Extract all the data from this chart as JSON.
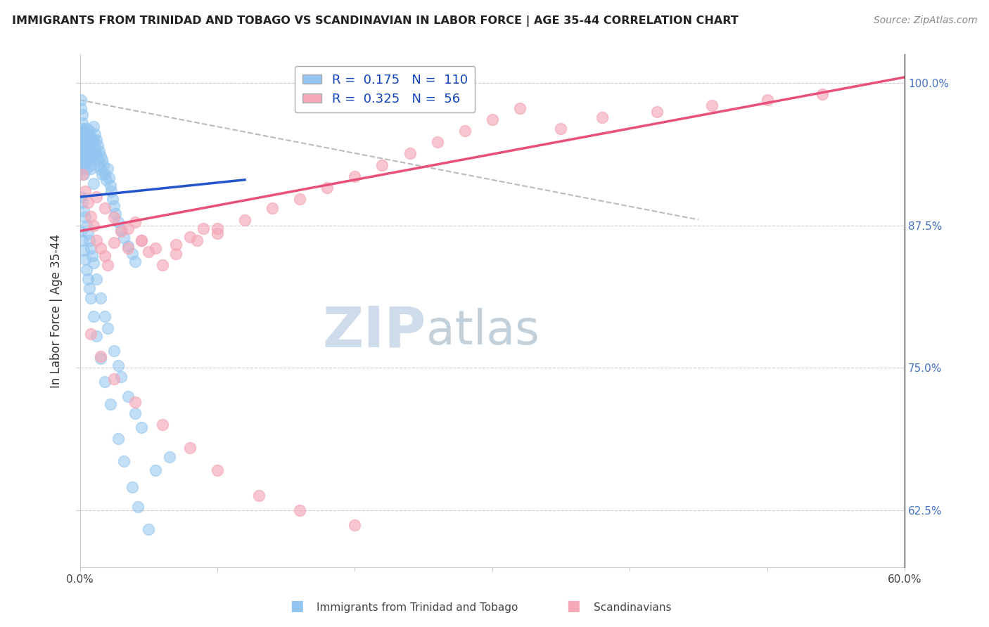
{
  "title": "IMMIGRANTS FROM TRINIDAD AND TOBAGO VS SCANDINAVIAN IN LABOR FORCE | AGE 35-44 CORRELATION CHART",
  "source": "Source: ZipAtlas.com",
  "ylabel": "In Labor Force | Age 35-44",
  "xlim": [
    0.0,
    0.6
  ],
  "ylim": [
    0.575,
    1.025
  ],
  "xticks": [
    0.0,
    0.1,
    0.2,
    0.3,
    0.4,
    0.5,
    0.6
  ],
  "xticklabels": [
    "0.0%",
    "",
    "",
    "",
    "",
    "",
    "60.0%"
  ],
  "ytick_positions": [
    0.625,
    0.75,
    0.875,
    1.0
  ],
  "ytick_labels": [
    "62.5%",
    "75.0%",
    "87.5%",
    "100.0%"
  ],
  "legend_blue_r": "0.175",
  "legend_blue_n": "110",
  "legend_pink_r": "0.325",
  "legend_pink_n": "56",
  "blue_color": "#92C5F0",
  "pink_color": "#F4A8B8",
  "blue_line_color": "#2255CC",
  "pink_line_color": "#E8507A",
  "dash_color": "#BBBBBB",
  "watermark_zip": "ZIP",
  "watermark_atlas": "atlas",
  "watermark_color_zip": "#C5D8EC",
  "watermark_color_atlas": "#B8C8D8",
  "grid_color": "#CCCCCC",
  "blue_line_x0": 0.0,
  "blue_line_x1": 0.12,
  "blue_line_y0": 0.9,
  "blue_line_y1": 0.915,
  "pink_line_x0": 0.0,
  "pink_line_x1": 0.6,
  "pink_line_y0": 0.87,
  "pink_line_y1": 1.005,
  "dash_line_x0": 0.0,
  "dash_line_x1": 0.45,
  "dash_line_y0": 0.985,
  "dash_line_y1": 0.88,
  "blue_scatter_x": [
    0.001,
    0.001,
    0.001,
    0.002,
    0.002,
    0.002,
    0.002,
    0.003,
    0.003,
    0.003,
    0.003,
    0.004,
    0.004,
    0.004,
    0.005,
    0.005,
    0.005,
    0.005,
    0.006,
    0.006,
    0.006,
    0.007,
    0.007,
    0.007,
    0.008,
    0.008,
    0.008,
    0.009,
    0.009,
    0.01,
    0.01,
    0.01,
    0.011,
    0.011,
    0.012,
    0.012,
    0.013,
    0.013,
    0.014,
    0.014,
    0.015,
    0.015,
    0.016,
    0.016,
    0.017,
    0.018,
    0.019,
    0.02,
    0.021,
    0.022,
    0.023,
    0.024,
    0.025,
    0.026,
    0.028,
    0.03,
    0.032,
    0.035,
    0.038,
    0.04,
    0.001,
    0.002,
    0.003,
    0.004,
    0.005,
    0.006,
    0.007,
    0.008,
    0.009,
    0.01,
    0.012,
    0.015,
    0.018,
    0.02,
    0.025,
    0.028,
    0.03,
    0.035,
    0.04,
    0.045,
    0.001,
    0.002,
    0.003,
    0.004,
    0.005,
    0.006,
    0.007,
    0.008,
    0.01,
    0.012,
    0.015,
    0.018,
    0.022,
    0.028,
    0.032,
    0.038,
    0.042,
    0.05,
    0.055,
    0.065,
    0.001,
    0.001,
    0.002,
    0.002,
    0.003,
    0.004,
    0.005,
    0.006,
    0.008,
    0.01
  ],
  "blue_scatter_y": [
    0.945,
    0.935,
    0.925,
    0.96,
    0.95,
    0.94,
    0.93,
    0.955,
    0.945,
    0.935,
    0.92,
    0.95,
    0.94,
    0.93,
    0.96,
    0.95,
    0.938,
    0.925,
    0.955,
    0.943,
    0.932,
    0.958,
    0.946,
    0.933,
    0.952,
    0.94,
    0.928,
    0.948,
    0.936,
    0.962,
    0.95,
    0.938,
    0.955,
    0.943,
    0.95,
    0.937,
    0.945,
    0.933,
    0.94,
    0.928,
    0.936,
    0.924,
    0.933,
    0.92,
    0.928,
    0.92,
    0.915,
    0.925,
    0.917,
    0.91,
    0.905,
    0.898,
    0.892,
    0.885,
    0.878,
    0.871,
    0.864,
    0.857,
    0.85,
    0.843,
    0.9,
    0.895,
    0.888,
    0.882,
    0.875,
    0.868,
    0.862,
    0.855,
    0.848,
    0.842,
    0.828,
    0.811,
    0.795,
    0.785,
    0.765,
    0.752,
    0.742,
    0.725,
    0.71,
    0.698,
    0.87,
    0.862,
    0.853,
    0.845,
    0.836,
    0.828,
    0.82,
    0.811,
    0.795,
    0.778,
    0.758,
    0.738,
    0.718,
    0.688,
    0.668,
    0.645,
    0.628,
    0.608,
    0.66,
    0.672,
    0.985,
    0.978,
    0.972,
    0.965,
    0.958,
    0.952,
    0.945,
    0.938,
    0.925,
    0.912
  ],
  "pink_scatter_x": [
    0.002,
    0.004,
    0.006,
    0.008,
    0.01,
    0.012,
    0.015,
    0.018,
    0.02,
    0.025,
    0.03,
    0.035,
    0.04,
    0.045,
    0.05,
    0.06,
    0.07,
    0.08,
    0.09,
    0.1,
    0.012,
    0.018,
    0.025,
    0.035,
    0.045,
    0.055,
    0.07,
    0.085,
    0.1,
    0.12,
    0.14,
    0.16,
    0.18,
    0.2,
    0.22,
    0.24,
    0.26,
    0.28,
    0.3,
    0.32,
    0.35,
    0.38,
    0.42,
    0.46,
    0.5,
    0.54,
    0.008,
    0.015,
    0.025,
    0.04,
    0.06,
    0.08,
    0.1,
    0.13,
    0.16,
    0.2
  ],
  "pink_scatter_y": [
    0.92,
    0.905,
    0.895,
    0.883,
    0.875,
    0.862,
    0.855,
    0.848,
    0.84,
    0.86,
    0.87,
    0.855,
    0.878,
    0.862,
    0.852,
    0.84,
    0.858,
    0.865,
    0.872,
    0.868,
    0.9,
    0.89,
    0.882,
    0.872,
    0.862,
    0.855,
    0.85,
    0.862,
    0.872,
    0.88,
    0.89,
    0.898,
    0.908,
    0.918,
    0.928,
    0.938,
    0.948,
    0.958,
    0.968,
    0.978,
    0.96,
    0.97,
    0.975,
    0.98,
    0.985,
    0.99,
    0.78,
    0.76,
    0.74,
    0.72,
    0.7,
    0.68,
    0.66,
    0.638,
    0.625,
    0.612
  ]
}
